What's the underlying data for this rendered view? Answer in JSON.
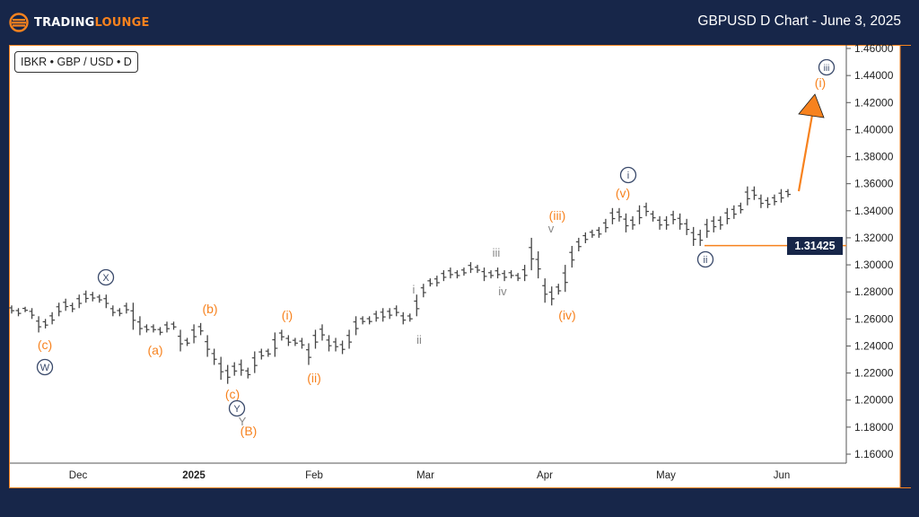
{
  "header": {
    "brand_part1": "TRADING",
    "brand_part2": "LOUNGE",
    "title": "GBPUSD D Chart - June 3, 2025"
  },
  "symbol_label": "IBKR • GBP / USD • D",
  "current_price_tag": "1.31425",
  "colors": {
    "background": "#172649",
    "accent": "#f7821e",
    "bar": "#444444",
    "price_tag_bg": "#172649",
    "circle_label": "#3a4a6b"
  },
  "chart_data": {
    "type": "ohlc-bar",
    "title": "GBPUSD D Chart - June 3, 2025",
    "xlabel": "",
    "ylabel": "",
    "ylim": [
      1.16,
      1.46
    ],
    "y_ticks": [
      "1.46000",
      "1.44000",
      "1.42000",
      "1.40000",
      "1.38000",
      "1.36000",
      "1.34000",
      "1.32000",
      "1.30000",
      "1.28000",
      "1.26000",
      "1.24000",
      "1.22000",
      "1.20000",
      "1.18000",
      "1.16000"
    ],
    "x_ticks": [
      "Dec",
      "2025",
      "Feb",
      "Mar",
      "Apr",
      "May",
      "Jun"
    ],
    "grid": false,
    "legend": "none",
    "price_line": {
      "value": 1.31425,
      "label": "1.31425",
      "color": "#f7821e"
    },
    "projection_arrow": {
      "from": 1.354,
      "to": 1.425,
      "color": "#f7821e",
      "meaning": "projected wave (i) of circled iii upward"
    },
    "wave_labels": [
      {
        "text": "(c)",
        "degree": "minor",
        "color": "orange",
        "price": 1.247,
        "x_date": "late Nov"
      },
      {
        "text": "W",
        "degree": "circled",
        "price": 1.236,
        "x_date": "late Nov"
      },
      {
        "text": "X",
        "degree": "circled",
        "price": 1.29,
        "x_date": "early Dec"
      },
      {
        "text": "(a)",
        "degree": "minor",
        "color": "orange",
        "price": 1.247,
        "x_date": "late Dec"
      },
      {
        "text": "(b)",
        "degree": "minor",
        "color": "orange",
        "price": 1.269,
        "x_date": "early Jan"
      },
      {
        "text": "(c)",
        "degree": "minor",
        "color": "orange",
        "price": 1.203,
        "x_date": "mid Jan"
      },
      {
        "text": "Y",
        "degree": "circled",
        "price": 1.194,
        "x_date": "mid Jan"
      },
      {
        "text": "(B)",
        "degree": "intermediate",
        "color": "orange",
        "price": 1.184,
        "x_date": "mid Jan"
      },
      {
        "text": "(i)",
        "degree": "minor",
        "color": "orange",
        "price": 1.259,
        "x_date": "late Jan"
      },
      {
        "text": "(ii)",
        "degree": "minor",
        "color": "orange",
        "price": 1.222,
        "x_date": "early Feb"
      },
      {
        "text": "i",
        "degree": "minute",
        "color": "gray",
        "price": 1.275,
        "x_date": "late Feb"
      },
      {
        "text": "ii",
        "degree": "minute",
        "color": "gray",
        "price": 1.243,
        "x_date": "early Mar"
      },
      {
        "text": "iii",
        "degree": "minute",
        "color": "gray",
        "price": 1.314,
        "x_date": "mid Mar"
      },
      {
        "text": "iv",
        "degree": "minute",
        "color": "gray",
        "price": 1.278,
        "x_date": "late Mar"
      },
      {
        "text": "v",
        "degree": "minute",
        "color": "gray",
        "price": 1.323,
        "x_date": "early Apr"
      },
      {
        "text": "(iii)",
        "degree": "minor",
        "color": "orange",
        "price": 1.335,
        "x_date": "early Apr"
      },
      {
        "text": "(iv)",
        "degree": "minor",
        "color": "orange",
        "price": 1.26,
        "x_date": "early Apr"
      },
      {
        "text": "(v)",
        "degree": "minor",
        "color": "orange",
        "price": 1.358,
        "x_date": "mid Apr"
      },
      {
        "text": "i",
        "degree": "circled",
        "price": 1.374,
        "x_date": "mid Apr"
      },
      {
        "text": "ii",
        "degree": "circled",
        "price": 1.304,
        "x_date": "mid May"
      },
      {
        "text": "iii",
        "degree": "circled",
        "price": 1.448,
        "x_date": "mid Jun"
      },
      {
        "text": "(i)",
        "degree": "minor",
        "color": "orange",
        "price": 1.436,
        "x_date": "mid Jun"
      }
    ],
    "bars_approx": [
      [
        1.27,
        1.264
      ],
      [
        1.268,
        1.262
      ],
      [
        1.269,
        1.265
      ],
      [
        1.268,
        1.26
      ],
      [
        1.262,
        1.25
      ],
      [
        1.26,
        1.253
      ],
      [
        1.265,
        1.256
      ],
      [
        1.272,
        1.262
      ],
      [
        1.275,
        1.266
      ],
      [
        1.272,
        1.265
      ],
      [
        1.278,
        1.268
      ],
      [
        1.281,
        1.272
      ],
      [
        1.28,
        1.273
      ],
      [
        1.278,
        1.272
      ],
      [
        1.278,
        1.268
      ],
      [
        1.27,
        1.262
      ],
      [
        1.268,
        1.262
      ],
      [
        1.272,
        1.264
      ],
      [
        1.272,
        1.252
      ],
      [
        1.262,
        1.248
      ],
      [
        1.256,
        1.25
      ],
      [
        1.256,
        1.25
      ],
      [
        1.254,
        1.248
      ],
      [
        1.258,
        1.25
      ],
      [
        1.258,
        1.252
      ],
      [
        1.252,
        1.236
      ],
      [
        1.246,
        1.24
      ],
      [
        1.256,
        1.242
      ],
      [
        1.257,
        1.248
      ],
      [
        1.248,
        1.232
      ],
      [
        1.238,
        1.226
      ],
      [
        1.232,
        1.215
      ],
      [
        1.226,
        1.212
      ],
      [
        1.228,
        1.218
      ],
      [
        1.23,
        1.218
      ],
      [
        1.224,
        1.216
      ],
      [
        1.236,
        1.22
      ],
      [
        1.238,
        1.23
      ],
      [
        1.238,
        1.232
      ],
      [
        1.25,
        1.232
      ],
      [
        1.252,
        1.244
      ],
      [
        1.248,
        1.24
      ],
      [
        1.246,
        1.24
      ],
      [
        1.246,
        1.238
      ],
      [
        1.242,
        1.226
      ],
      [
        1.252,
        1.238
      ],
      [
        1.256,
        1.244
      ],
      [
        1.248,
        1.236
      ],
      [
        1.246,
        1.236
      ],
      [
        1.244,
        1.234
      ],
      [
        1.252,
        1.238
      ],
      [
        1.262,
        1.248
      ],
      [
        1.262,
        1.256
      ],
      [
        1.262,
        1.256
      ],
      [
        1.266,
        1.258
      ],
      [
        1.268,
        1.258
      ],
      [
        1.268,
        1.26
      ],
      [
        1.27,
        1.262
      ],
      [
        1.265,
        1.256
      ],
      [
        1.264,
        1.258
      ],
      [
        1.278,
        1.262
      ],
      [
        1.286,
        1.276
      ],
      [
        1.29,
        1.284
      ],
      [
        1.292,
        1.284
      ],
      [
        1.296,
        1.288
      ],
      [
        1.298,
        1.29
      ],
      [
        1.296,
        1.29
      ],
      [
        1.298,
        1.292
      ],
      [
        1.302,
        1.294
      ],
      [
        1.3,
        1.294
      ],
      [
        1.298,
        1.288
      ],
      [
        1.296,
        1.29
      ],
      [
        1.298,
        1.29
      ],
      [
        1.296,
        1.288
      ],
      [
        1.296,
        1.29
      ],
      [
        1.294,
        1.288
      ],
      [
        1.3,
        1.288
      ],
      [
        1.32,
        1.296
      ],
      [
        1.31,
        1.29
      ],
      [
        1.29,
        1.272
      ],
      [
        1.284,
        1.27
      ],
      [
        1.286,
        1.278
      ],
      [
        1.3,
        1.28
      ],
      [
        1.314,
        1.298
      ],
      [
        1.32,
        1.31
      ],
      [
        1.324,
        1.316
      ],
      [
        1.326,
        1.32
      ],
      [
        1.328,
        1.32
      ],
      [
        1.334,
        1.324
      ],
      [
        1.342,
        1.33
      ],
      [
        1.342,
        1.332
      ],
      [
        1.338,
        1.324
      ],
      [
        1.336,
        1.326
      ],
      [
        1.344,
        1.33
      ],
      [
        1.346,
        1.336
      ],
      [
        1.34,
        1.332
      ],
      [
        1.336,
        1.326
      ],
      [
        1.336,
        1.326
      ],
      [
        1.34,
        1.33
      ],
      [
        1.338,
        1.326
      ],
      [
        1.334,
        1.322
      ],
      [
        1.328,
        1.314
      ],
      [
        1.326,
        1.314
      ],
      [
        1.334,
        1.32
      ],
      [
        1.336,
        1.324
      ],
      [
        1.336,
        1.326
      ],
      [
        1.342,
        1.33
      ],
      [
        1.344,
        1.334
      ],
      [
        1.346,
        1.338
      ],
      [
        1.358,
        1.344
      ],
      [
        1.358,
        1.348
      ],
      [
        1.352,
        1.342
      ],
      [
        1.35,
        1.342
      ],
      [
        1.352,
        1.344
      ],
      [
        1.356,
        1.346
      ],
      [
        1.356,
        1.35
      ]
    ]
  }
}
